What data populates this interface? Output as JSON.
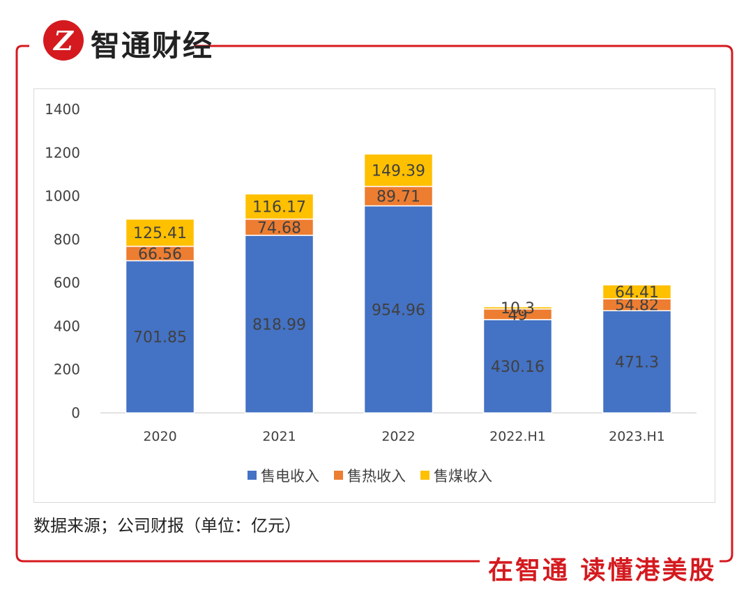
{
  "brand": {
    "name": "智通财经",
    "logo_glyph": "Z",
    "color": "#d41a1f",
    "slogan": "在智通  读懂港美股"
  },
  "source_note": "数据来源；公司财报（单位：亿元）",
  "chart_data": {
    "type": "bar",
    "stacked": true,
    "categories": [
      "2020",
      "2021",
      "2022",
      "2022.H1",
      "2023.H1"
    ],
    "series": [
      {
        "name": "售电收入",
        "color": "#4472c4",
        "values": [
          701.85,
          818.99,
          954.96,
          430.16,
          471.3
        ],
        "labels": [
          "701.85",
          "818.99",
          "954.96",
          "430.16",
          "471.3"
        ]
      },
      {
        "name": "售热收入",
        "color": "#ed7d31",
        "values": [
          66.56,
          74.68,
          89.71,
          49,
          54.82
        ],
        "labels": [
          "66.56",
          "74.68",
          "89.71",
          "49",
          "54.82"
        ]
      },
      {
        "name": "售煤收入",
        "color": "#ffc000",
        "values": [
          125.41,
          116.17,
          149.39,
          10.3,
          64.41
        ],
        "labels": [
          "125.41",
          "116.17",
          "149.39",
          "10.3",
          "64.41"
        ]
      }
    ],
    "yticks": [
      "0",
      "200",
      "400",
      "600",
      "800",
      "1000",
      "1200",
      "1400"
    ],
    "ylim": [
      0,
      1400
    ],
    "grid": false,
    "legend": "bottom",
    "xlabel": "",
    "ylabel": "",
    "title": ""
  }
}
